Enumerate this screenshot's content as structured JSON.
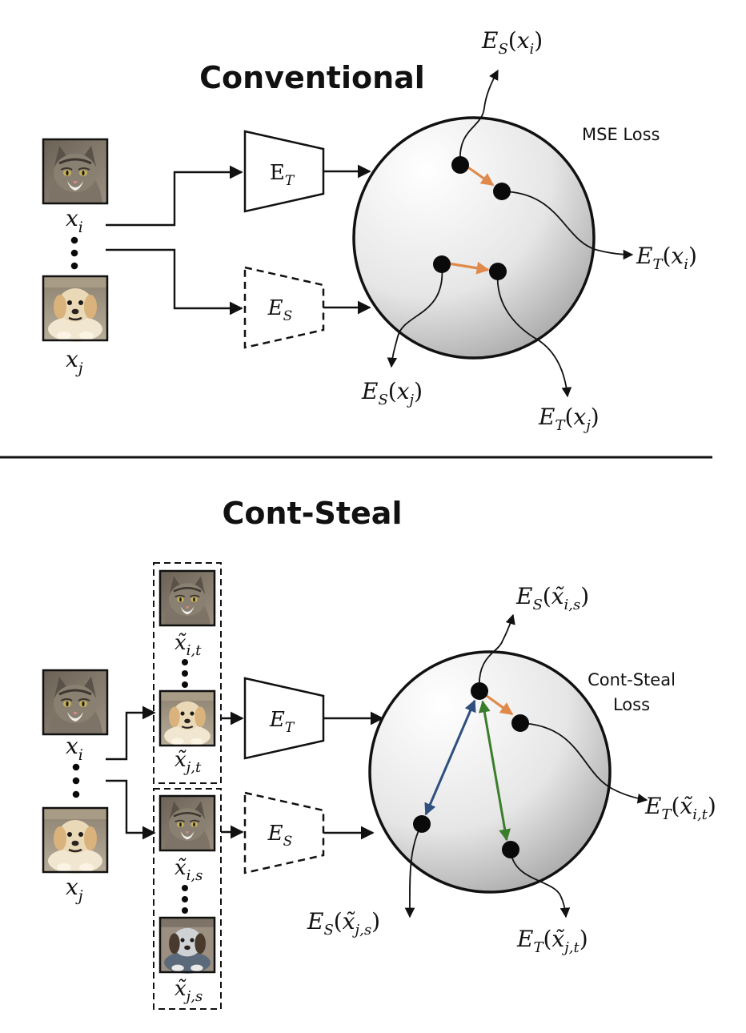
{
  "conventional": {
    "title": "Conventional",
    "loss_label": "MSE Loss",
    "input_i": "x_i",
    "input_j": "x_j",
    "teacher_encoder": "E_T",
    "student_encoder": "E_S",
    "es_xi": "E_S(x_i)",
    "et_xi": "E_T(x_i)",
    "es_xj": "E_S(x_j)",
    "et_xj": "E_T(x_j)"
  },
  "cont_steal": {
    "title": "Cont-Steal",
    "loss_label_line1": "Cont-Steal",
    "loss_label_line2": "Loss",
    "input_i": "x_i",
    "input_j": "x_j",
    "aug_i_t": "x̃_i,t",
    "aug_j_t": "x̃_j,t",
    "aug_i_s": "x̃_i,s",
    "aug_j_s": "x̃_j,s",
    "teacher_encoder": "E_T",
    "student_encoder": "E_S",
    "es_xis": "E_S(x̃_i,s)",
    "et_xit": "E_T(x̃_i,t)",
    "es_xjs": "E_S(x̃_j,s)",
    "et_xjt": "E_T(x̃_j,t)"
  },
  "image_icons": {
    "cat": "cat-photo-icon",
    "dog": "dog-photo-icon"
  },
  "colors": {
    "orange_arrow": "#e0894a",
    "blue_arrow": "#2f4f7f",
    "green_arrow": "#3a7d2a"
  }
}
